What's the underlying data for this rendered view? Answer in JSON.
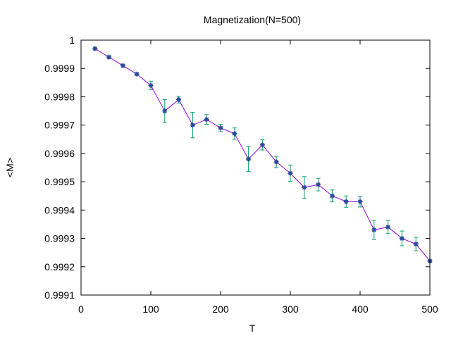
{
  "chart_data": {
    "type": "line",
    "title": "Magnetization(N=500)",
    "xlabel": "T",
    "ylabel": "<M>",
    "xlim": [
      0,
      500
    ],
    "ylim": [
      0.9991,
      1
    ],
    "x_ticks": [
      0,
      100,
      200,
      300,
      400,
      500
    ],
    "x_tick_labels": [
      "0",
      "100",
      "200",
      "300",
      "400",
      "500"
    ],
    "y_ticks": [
      0.9991,
      0.9992,
      0.9993,
      0.9994,
      0.9995,
      0.9996,
      0.9997,
      0.9998,
      0.9999,
      1
    ],
    "y_tick_labels": [
      "0.9991",
      "0.9992",
      "0.9993",
      "0.9994",
      "0.9995",
      "0.9996",
      "0.9997",
      "0.9998",
      "0.9999",
      "1"
    ],
    "grid": false,
    "line_color": "#9400d3",
    "errorbar_color": "#009e73",
    "marker_color": "#2a4a9a",
    "series": [
      {
        "x": [
          20,
          40,
          60,
          80,
          100,
          120,
          140,
          160,
          180,
          200,
          220,
          240,
          260,
          280,
          300,
          320,
          340,
          360,
          380,
          400,
          420,
          440,
          460,
          480,
          500
        ],
        "y": [
          0.99997,
          0.99994,
          0.99991,
          0.99988,
          0.99984,
          0.99975,
          0.99979,
          0.9997,
          0.99972,
          0.99969,
          0.99967,
          0.99958,
          0.99963,
          0.99957,
          0.99953,
          0.99948,
          0.99949,
          0.99945,
          0.99943,
          0.99943,
          0.99933,
          0.99934,
          0.9993,
          0.99928,
          0.99922
        ],
        "err": [
          5e-06,
          5e-06,
          5e-06,
          5e-06,
          1.5e-05,
          4e-05,
          1.2e-05,
          4.5e-05,
          1.7e-05,
          1.3e-05,
          2e-05,
          4.4e-05,
          1.8e-05,
          2e-05,
          2.9e-05,
          3.8e-05,
          2.2e-05,
          2.1e-05,
          2e-05,
          1.9e-05,
          3.4e-05,
          2.3e-05,
          2.6e-05,
          2.4e-05,
          4e-06
        ]
      }
    ]
  }
}
